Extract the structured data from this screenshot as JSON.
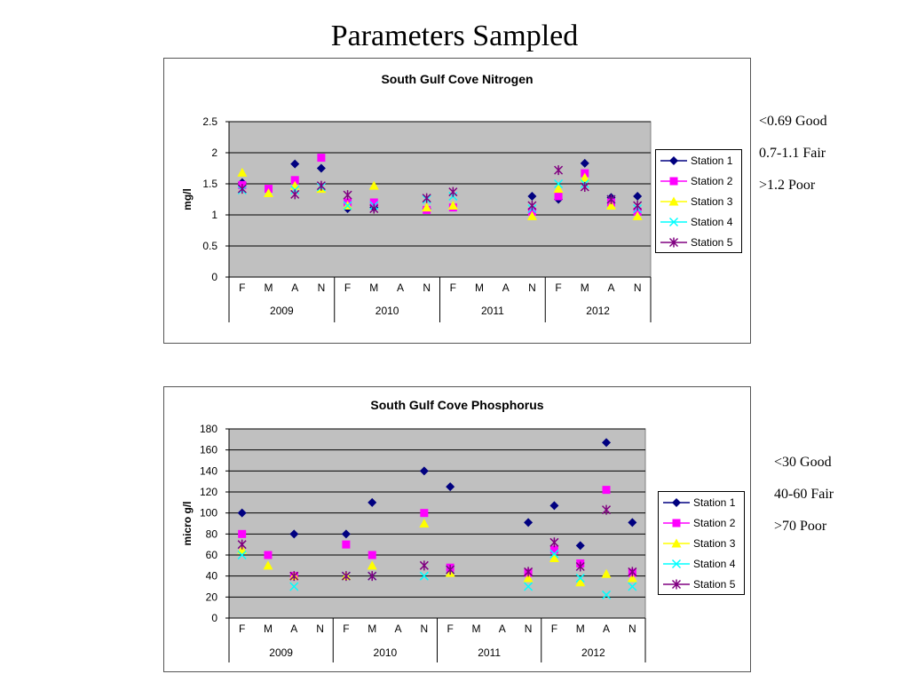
{
  "title": "Parameters Sampled",
  "nitrogen_scale": [
    "<0.69 Good",
    "0.7-1.1 Fair",
    ">1.2 Poor"
  ],
  "phosphorus_scale": [
    "<30 Good",
    "40-60 Fair",
    ">70 Poor"
  ],
  "series_styles": [
    {
      "color": "#000080",
      "marker": "diamond"
    },
    {
      "color": "#FF00FF",
      "marker": "square"
    },
    {
      "color": "#FFFF00",
      "marker": "triangle"
    },
    {
      "color": "#00FFFF",
      "marker": "x"
    },
    {
      "color": "#800080",
      "marker": "star"
    }
  ],
  "colors": {
    "plot_background": "#C0C0C0",
    "gridline": "#000000"
  },
  "chart_data": [
    {
      "type": "scatter",
      "title": "South Gulf Cove Nitrogen",
      "xlabel": "",
      "ylabel": "mg/l",
      "ylim": [
        0,
        2.5
      ],
      "yticks": [
        0,
        0.5,
        1,
        1.5,
        2,
        2.5
      ],
      "ytick_labels": [
        "0",
        "0.5",
        "1",
        "1.5",
        "2",
        "2.5"
      ],
      "categories": [
        "F",
        "M",
        "A",
        "N",
        "F",
        "M",
        "A",
        "N",
        "F",
        "M",
        "A",
        "N",
        "F",
        "M",
        "A",
        "N"
      ],
      "groups": [
        "2009",
        "2010",
        "2011",
        "2012"
      ],
      "grid": true,
      "legend": "right",
      "series": [
        {
          "name": "Station 1",
          "values": [
            1.52,
            null,
            1.82,
            1.75,
            1.1,
            1.12,
            null,
            1.1,
            null,
            null,
            null,
            1.3,
            1.25,
            1.83,
            1.28,
            1.3
          ]
        },
        {
          "name": "Station 2",
          "values": [
            1.48,
            1.42,
            1.56,
            1.92,
            1.2,
            1.2,
            null,
            1.08,
            1.12,
            null,
            null,
            1.05,
            1.3,
            1.67,
            1.2,
            1.05
          ]
        },
        {
          "name": "Station 3",
          "values": [
            1.68,
            1.35,
            1.47,
            1.42,
            1.15,
            1.47,
            null,
            1.12,
            1.15,
            null,
            null,
            0.98,
            1.42,
            1.6,
            1.15,
            0.98
          ]
        },
        {
          "name": "Station 4",
          "values": [
            1.4,
            null,
            1.4,
            1.45,
            1.15,
            1.15,
            null,
            1.25,
            1.3,
            null,
            null,
            1.1,
            1.5,
            1.5,
            1.25,
            1.1
          ]
        },
        {
          "name": "Station 5",
          "values": [
            1.42,
            null,
            1.33,
            1.47,
            1.32,
            1.1,
            null,
            1.27,
            1.37,
            null,
            null,
            1.15,
            1.72,
            1.45,
            1.25,
            1.15
          ]
        }
      ]
    },
    {
      "type": "scatter",
      "title": "South Gulf Cove Phosphorus",
      "xlabel": "",
      "ylabel": "micro g/l",
      "ylim": [
        0,
        180
      ],
      "yticks": [
        0,
        20,
        40,
        60,
        80,
        100,
        120,
        140,
        160,
        180
      ],
      "ytick_labels": [
        "0",
        "20",
        "40",
        "60",
        "80",
        "100",
        "120",
        "140",
        "160",
        "180"
      ],
      "categories": [
        "F",
        "M",
        "A",
        "N",
        "F",
        "M",
        "A",
        "N",
        "F",
        "M",
        "A",
        "N",
        "F",
        "M",
        "A",
        "N"
      ],
      "groups": [
        "2009",
        "2010",
        "2011",
        "2012"
      ],
      "grid": true,
      "legend": "right",
      "series": [
        {
          "name": "Station 1",
          "values": [
            100,
            null,
            80,
            null,
            80,
            110,
            null,
            140,
            125,
            null,
            null,
            91,
            107,
            69,
            167,
            91
          ]
        },
        {
          "name": "Station 2",
          "values": [
            80,
            60,
            40,
            null,
            70,
            60,
            null,
            100,
            48,
            null,
            null,
            43,
            65,
            52,
            122,
            43
          ]
        },
        {
          "name": "Station 3",
          "values": [
            65,
            50,
            40,
            null,
            40,
            50,
            null,
            90,
            43,
            null,
            null,
            38,
            57,
            34,
            42,
            38
          ]
        },
        {
          "name": "Station 4",
          "values": [
            60,
            null,
            30,
            null,
            40,
            40,
            null,
            40,
            46,
            null,
            null,
            30,
            61,
            38,
            22,
            30
          ]
        },
        {
          "name": "Station 5",
          "values": [
            70,
            null,
            40,
            null,
            40,
            40,
            null,
            50,
            46,
            null,
            null,
            44,
            72,
            49,
            103,
            44
          ]
        }
      ]
    }
  ]
}
